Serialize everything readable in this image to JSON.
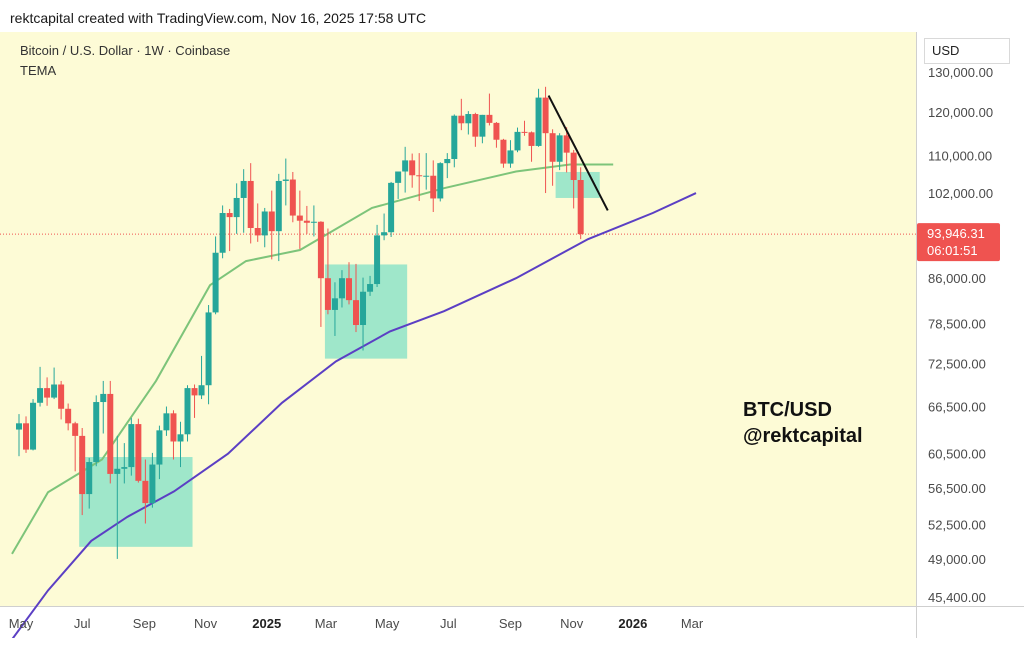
{
  "caption": "rektcapital created with TradingView.com, Nov 16, 2025 17:58 UTC",
  "symbol_line": "Bitcoin / U.S. Dollar · 1W · Coinbase",
  "indicator": "TEMA",
  "currency": "USD",
  "brand_title": "BTC/USD",
  "brand_handle": "@rektcapital",
  "price_label": {
    "price": "93,946.31",
    "countdown": "06:01:51"
  },
  "colors": {
    "background": "#fdfbd6",
    "up": "#26a69a",
    "down": "#ef5350",
    "ema_short": "#7dc47a",
    "ema_long": "#5b3fc4",
    "box": "#8ee3c8",
    "price_label_bg": "#ef5350",
    "trendline": "#111111"
  },
  "chart_data": {
    "type": "candlestick",
    "interval": "1W",
    "y_axis": {
      "ticks": [
        "130,000.00",
        "120,000.00",
        "110,000.00",
        "102,000.00",
        "86,000.00",
        "78,500.00",
        "72,500.00",
        "66,500.00",
        "60,500.00",
        "56,500.00",
        "52,500.00",
        "49,000.00",
        "45,400.00"
      ],
      "tick_values": [
        130000,
        120000,
        110000,
        102000,
        86000,
        78500,
        72500,
        66500,
        60500,
        56500,
        52500,
        49000,
        45400
      ],
      "scale": "log"
    },
    "x_axis": {
      "labels": [
        "May",
        "Jul",
        "Sep",
        "Nov",
        "2025",
        "Mar",
        "May",
        "Jul",
        "Sep",
        "Nov",
        "2026",
        "Mar"
      ],
      "bold": [
        "2025",
        "2026"
      ],
      "dates": [
        "2024-05-01",
        "2024-07-01",
        "2024-09-01",
        "2024-11-01",
        "2025-01-01",
        "2025-03-01",
        "2025-05-01",
        "2025-07-01",
        "2025-09-01",
        "2025-11-01",
        "2026-01-01",
        "2026-03-01"
      ]
    },
    "current_price": 93946.31,
    "candles": [
      {
        "date": "2024-04-29",
        "o": 63500,
        "h": 65500,
        "l": 60200,
        "c": 64300
      },
      {
        "date": "2024-05-06",
        "o": 64300,
        "h": 65200,
        "l": 60600,
        "c": 61000
      },
      {
        "date": "2024-05-13",
        "o": 61000,
        "h": 67500,
        "l": 60900,
        "c": 67000
      },
      {
        "date": "2024-05-20",
        "o": 67000,
        "h": 72000,
        "l": 66500,
        "c": 69000
      },
      {
        "date": "2024-05-27",
        "o": 69000,
        "h": 70500,
        "l": 66600,
        "c": 67700
      },
      {
        "date": "2024-06-03",
        "o": 67700,
        "h": 71900,
        "l": 67500,
        "c": 69500
      },
      {
        "date": "2024-06-10",
        "o": 69500,
        "h": 70000,
        "l": 64800,
        "c": 66200
      },
      {
        "date": "2024-06-17",
        "o": 66200,
        "h": 66900,
        "l": 63400,
        "c": 64300
      },
      {
        "date": "2024-06-24",
        "o": 64300,
        "h": 64500,
        "l": 58400,
        "c": 62700
      },
      {
        "date": "2024-07-01",
        "o": 62700,
        "h": 63700,
        "l": 53500,
        "c": 55800
      },
      {
        "date": "2024-07-08",
        "o": 55800,
        "h": 60000,
        "l": 54200,
        "c": 59500
      },
      {
        "date": "2024-07-15",
        "o": 59500,
        "h": 68000,
        "l": 59000,
        "c": 67100
      },
      {
        "date": "2024-07-22",
        "o": 67100,
        "h": 70000,
        "l": 63000,
        "c": 68200
      },
      {
        "date": "2024-07-29",
        "o": 68200,
        "h": 70000,
        "l": 57000,
        "c": 58100
      },
      {
        "date": "2024-08-05",
        "o": 58100,
        "h": 62700,
        "l": 49000,
        "c": 58700
      },
      {
        "date": "2024-08-12",
        "o": 58700,
        "h": 61800,
        "l": 57000,
        "c": 58900
      },
      {
        "date": "2024-08-19",
        "o": 58900,
        "h": 65000,
        "l": 57900,
        "c": 64200
      },
      {
        "date": "2024-08-26",
        "o": 64200,
        "h": 64900,
        "l": 57100,
        "c": 57300
      },
      {
        "date": "2024-09-02",
        "o": 57300,
        "h": 59800,
        "l": 52600,
        "c": 54800
      },
      {
        "date": "2024-09-09",
        "o": 54800,
        "h": 60600,
        "l": 54300,
        "c": 59200
      },
      {
        "date": "2024-09-16",
        "o": 59200,
        "h": 64000,
        "l": 57500,
        "c": 63400
      },
      {
        "date": "2024-09-23",
        "o": 63400,
        "h": 66500,
        "l": 62700,
        "c": 65600
      },
      {
        "date": "2024-09-30",
        "o": 65600,
        "h": 66000,
        "l": 59800,
        "c": 62000
      },
      {
        "date": "2024-10-07",
        "o": 62000,
        "h": 64500,
        "l": 58900,
        "c": 62900
      },
      {
        "date": "2024-10-14",
        "o": 62900,
        "h": 69400,
        "l": 62000,
        "c": 69000
      },
      {
        "date": "2024-10-21",
        "o": 69000,
        "h": 69500,
        "l": 65000,
        "c": 68000
      },
      {
        "date": "2024-10-28",
        "o": 68000,
        "h": 73600,
        "l": 67500,
        "c": 69400
      },
      {
        "date": "2024-11-04",
        "o": 69400,
        "h": 81500,
        "l": 66800,
        "c": 80300
      },
      {
        "date": "2024-11-11",
        "o": 80300,
        "h": 93500,
        "l": 80000,
        "c": 90500
      },
      {
        "date": "2024-11-18",
        "o": 90500,
        "h": 99500,
        "l": 89500,
        "c": 98000
      },
      {
        "date": "2024-11-25",
        "o": 98000,
        "h": 98800,
        "l": 90800,
        "c": 97200
      },
      {
        "date": "2024-12-02",
        "o": 97200,
        "h": 104000,
        "l": 94000,
        "c": 101000
      },
      {
        "date": "2024-12-09",
        "o": 101000,
        "h": 107000,
        "l": 94200,
        "c": 104500
      },
      {
        "date": "2024-12-16",
        "o": 104500,
        "h": 108300,
        "l": 92200,
        "c": 95100
      },
      {
        "date": "2024-12-23",
        "o": 95100,
        "h": 99900,
        "l": 92500,
        "c": 93700
      },
      {
        "date": "2024-12-30",
        "o": 93700,
        "h": 99000,
        "l": 91500,
        "c": 98300
      },
      {
        "date": "2025-01-06",
        "o": 98300,
        "h": 102500,
        "l": 89300,
        "c": 94500
      },
      {
        "date": "2025-01-13",
        "o": 94500,
        "h": 106000,
        "l": 89000,
        "c": 104500
      },
      {
        "date": "2025-01-20",
        "o": 104500,
        "h": 109300,
        "l": 99500,
        "c": 104800
      },
      {
        "date": "2025-01-27",
        "o": 104800,
        "h": 106400,
        "l": 96200,
        "c": 97500
      },
      {
        "date": "2025-02-03",
        "o": 97500,
        "h": 102500,
        "l": 91200,
        "c": 96500
      },
      {
        "date": "2025-02-10",
        "o": 96500,
        "h": 99400,
        "l": 94000,
        "c": 96100
      },
      {
        "date": "2025-02-17",
        "o": 96100,
        "h": 99500,
        "l": 93500,
        "c": 96300
      },
      {
        "date": "2025-02-24",
        "o": 96300,
        "h": 96400,
        "l": 78000,
        "c": 86000
      },
      {
        "date": "2025-03-03",
        "o": 86000,
        "h": 95000,
        "l": 80000,
        "c": 80700
      },
      {
        "date": "2025-03-10",
        "o": 80700,
        "h": 85300,
        "l": 76600,
        "c": 82600
      },
      {
        "date": "2025-03-17",
        "o": 82600,
        "h": 87400,
        "l": 81100,
        "c": 86000
      },
      {
        "date": "2025-03-24",
        "o": 86000,
        "h": 88800,
        "l": 81600,
        "c": 82300
      },
      {
        "date": "2025-03-31",
        "o": 82300,
        "h": 88500,
        "l": 77200,
        "c": 78300
      },
      {
        "date": "2025-04-07",
        "o": 78300,
        "h": 86100,
        "l": 74400,
        "c": 83700
      },
      {
        "date": "2025-04-14",
        "o": 83700,
        "h": 86400,
        "l": 83000,
        "c": 85000
      },
      {
        "date": "2025-04-21",
        "o": 85000,
        "h": 95700,
        "l": 84500,
        "c": 93700
      },
      {
        "date": "2025-04-28",
        "o": 93700,
        "h": 97900,
        "l": 92800,
        "c": 94300
      },
      {
        "date": "2025-05-05",
        "o": 94300,
        "h": 104300,
        "l": 93400,
        "c": 104100
      },
      {
        "date": "2025-05-12",
        "o": 104100,
        "h": 105800,
        "l": 100800,
        "c": 106500
      },
      {
        "date": "2025-05-19",
        "o": 106500,
        "h": 111900,
        "l": 102100,
        "c": 108900
      },
      {
        "date": "2025-05-26",
        "o": 108900,
        "h": 110400,
        "l": 103100,
        "c": 105700
      },
      {
        "date": "2025-06-02",
        "o": 105700,
        "h": 110500,
        "l": 100400,
        "c": 105500
      },
      {
        "date": "2025-06-09",
        "o": 105500,
        "h": 110500,
        "l": 102700,
        "c": 105600
      },
      {
        "date": "2025-06-16",
        "o": 105600,
        "h": 108900,
        "l": 98200,
        "c": 100900
      },
      {
        "date": "2025-06-23",
        "o": 100900,
        "h": 108500,
        "l": 100300,
        "c": 108300
      },
      {
        "date": "2025-06-30",
        "o": 108300,
        "h": 110500,
        "l": 105100,
        "c": 109200
      },
      {
        "date": "2025-07-07",
        "o": 109200,
        "h": 119400,
        "l": 107400,
        "c": 119100
      },
      {
        "date": "2025-07-14",
        "o": 119100,
        "h": 123200,
        "l": 115700,
        "c": 117300
      },
      {
        "date": "2025-07-21",
        "o": 117300,
        "h": 120200,
        "l": 114700,
        "c": 119500
      },
      {
        "date": "2025-07-28",
        "o": 119500,
        "h": 119800,
        "l": 111900,
        "c": 114200
      },
      {
        "date": "2025-08-04",
        "o": 114200,
        "h": 119300,
        "l": 112700,
        "c": 119300
      },
      {
        "date": "2025-08-11",
        "o": 119300,
        "h": 124500,
        "l": 116800,
        "c": 117400
      },
      {
        "date": "2025-08-18",
        "o": 117400,
        "h": 117600,
        "l": 111700,
        "c": 113500
      },
      {
        "date": "2025-08-25",
        "o": 113500,
        "h": 113700,
        "l": 107300,
        "c": 108200
      },
      {
        "date": "2025-09-01",
        "o": 108200,
        "h": 113400,
        "l": 107300,
        "c": 111100
      },
      {
        "date": "2025-09-08",
        "o": 111100,
        "h": 116300,
        "l": 110700,
        "c": 115300
      },
      {
        "date": "2025-09-15",
        "o": 115300,
        "h": 117900,
        "l": 114400,
        "c": 115200
      },
      {
        "date": "2025-09-22",
        "o": 115200,
        "h": 115400,
        "l": 108600,
        "c": 112100
      },
      {
        "date": "2025-09-29",
        "o": 112100,
        "h": 125700,
        "l": 111900,
        "c": 123500
      },
      {
        "date": "2025-10-06",
        "o": 123500,
        "h": 126200,
        "l": 102000,
        "c": 115000
      },
      {
        "date": "2025-10-13",
        "o": 115000,
        "h": 115900,
        "l": 103500,
        "c": 108600
      },
      {
        "date": "2025-10-20",
        "o": 108600,
        "h": 115000,
        "l": 106800,
        "c": 114500
      },
      {
        "date": "2025-10-27",
        "o": 114500,
        "h": 116400,
        "l": 106300,
        "c": 110600
      },
      {
        "date": "2025-11-03",
        "o": 110600,
        "h": 111200,
        "l": 98900,
        "c": 104700
      },
      {
        "date": "2025-11-10",
        "o": 104700,
        "h": 107400,
        "l": 93000,
        "c": 93946
      }
    ],
    "moving_averages": [
      {
        "kind": "short",
        "values": [
          [
            0,
            49500
          ],
          [
            10,
            56000
          ],
          [
            25,
            59800
          ],
          [
            40,
            70000
          ],
          [
            55,
            84800
          ],
          [
            65,
            89000
          ],
          [
            80,
            91000
          ],
          [
            100,
            99000
          ],
          [
            120,
            103000
          ],
          [
            140,
            106500
          ],
          [
            155,
            108000
          ],
          [
            167,
            108000
          ]
        ]
      },
      {
        "kind": "long",
        "values": [
          [
            0,
            41700
          ],
          [
            10,
            46000
          ],
          [
            22,
            50800
          ],
          [
            32,
            53300
          ],
          [
            45,
            56100
          ],
          [
            60,
            60500
          ],
          [
            75,
            67000
          ],
          [
            90,
            72800
          ],
          [
            105,
            77300
          ],
          [
            120,
            80500
          ],
          [
            140,
            86000
          ],
          [
            160,
            93000
          ],
          [
            178,
            98000
          ],
          [
            190,
            102000
          ]
        ]
      }
    ],
    "zones": [
      {
        "from": "2024-06-28",
        "to": "2024-10-19",
        "low": 50200,
        "high": 60100
      },
      {
        "from": "2025-02-28",
        "to": "2025-05-21",
        "low": 73200,
        "high": 88400
      },
      {
        "from": "2025-10-16",
        "to": "2025-11-29",
        "low": 101000,
        "high": 106400
      }
    ],
    "trendline": [
      {
        "date": "2025-10-09",
        "price": 124000
      },
      {
        "date": "2025-12-07",
        "price": 98500
      }
    ]
  }
}
